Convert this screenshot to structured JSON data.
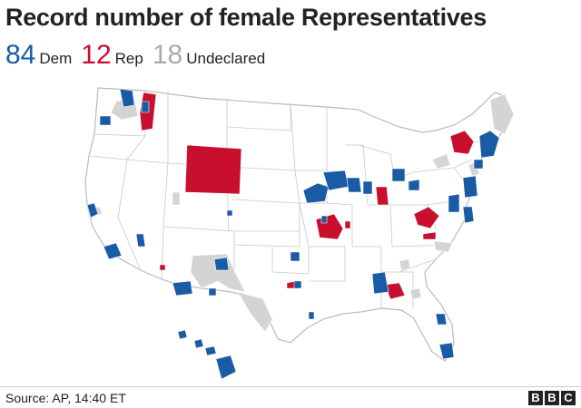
{
  "title": "Record number of female Representatives",
  "legend": [
    {
      "count": "84",
      "label": "Dem",
      "color": "#1a5ba6"
    },
    {
      "count": "12",
      "label": "Rep",
      "color": "#c8102e"
    },
    {
      "count": "18",
      "label": "Undeclared",
      "color": "#aaaaaa"
    }
  ],
  "map": {
    "subject": "US congressional districts won by female Representatives",
    "colors": {
      "dem": "#1a5ba6",
      "rep": "#c8102e",
      "undeclared": "#d4d4d4",
      "land": "#ffffff",
      "border": "#bbbbbb"
    }
  },
  "source": "Source: AP, 14:40 ET",
  "logo": [
    "B",
    "B",
    "C"
  ]
}
